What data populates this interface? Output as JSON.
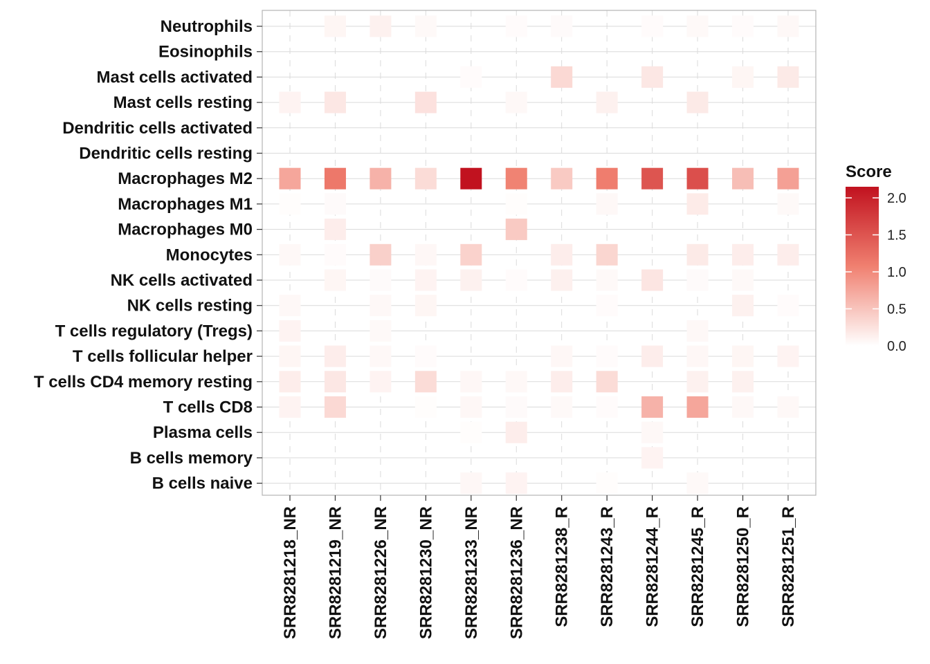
{
  "chart_data": {
    "type": "heatmap",
    "xlabel": "",
    "ylabel": "",
    "x": [
      "SRR8281218_NR",
      "SRR8281219_NR",
      "SRR8281226_NR",
      "SRR8281230_NR",
      "SRR8281233_NR",
      "SRR8281236_NR",
      "SRR8281238_R",
      "SRR8281243_R",
      "SRR8281244_R",
      "SRR8281245_R",
      "SRR8281250_R",
      "SRR8281251_R"
    ],
    "y": [
      "Neutrophils",
      "Eosinophils",
      "Mast cells activated",
      "Mast cells resting",
      "Dendritic cells activated",
      "Dendritic cells resting",
      "Macrophages M2",
      "Macrophages M1",
      "Macrophages M0",
      "Monocytes",
      "NK cells activated",
      "NK cells resting",
      "T cells regulatory (Tregs)",
      "T cells follicular helper",
      "T cells CD4 memory resting",
      "T cells CD8",
      "Plasma cells",
      "B cells memory",
      "B cells naive"
    ],
    "values": [
      [
        0.0,
        0.08,
        0.12,
        0.05,
        0.0,
        0.03,
        0.04,
        0.0,
        0.03,
        0.05,
        0.03,
        0.06
      ],
      [
        0.0,
        0.0,
        0.0,
        0.0,
        0.0,
        0.0,
        0.0,
        0.0,
        0.0,
        0.0,
        0.0,
        0.0
      ],
      [
        0.0,
        0.0,
        0.0,
        0.0,
        0.03,
        0.0,
        0.32,
        0.0,
        0.2,
        0.0,
        0.08,
        0.18
      ],
      [
        0.1,
        0.2,
        0.0,
        0.25,
        0.0,
        0.06,
        0.0,
        0.12,
        0.0,
        0.18,
        0.0,
        0.0
      ],
      [
        0.0,
        0.0,
        0.0,
        0.0,
        0.0,
        0.0,
        0.0,
        0.0,
        0.0,
        0.0,
        0.0,
        0.0
      ],
      [
        0.0,
        0.0,
        0.0,
        0.0,
        0.0,
        0.0,
        0.0,
        0.0,
        0.0,
        0.0,
        0.0,
        0.0
      ],
      [
        0.75,
        1.15,
        0.65,
        0.3,
        2.15,
        1.05,
        0.45,
        1.1,
        1.5,
        1.55,
        0.55,
        0.8
      ],
      [
        0.02,
        0.04,
        0.0,
        0.0,
        0.0,
        0.02,
        0.0,
        0.06,
        0.0,
        0.17,
        0.0,
        0.05
      ],
      [
        0.0,
        0.15,
        0.0,
        0.0,
        0.0,
        0.45,
        0.0,
        0.0,
        0.0,
        0.0,
        0.0,
        0.0
      ],
      [
        0.06,
        0.03,
        0.4,
        0.07,
        0.38,
        0.0,
        0.15,
        0.35,
        0.0,
        0.18,
        0.15,
        0.15
      ],
      [
        0.0,
        0.08,
        0.04,
        0.1,
        0.12,
        0.03,
        0.13,
        0.05,
        0.22,
        0.04,
        0.05,
        0.0
      ],
      [
        0.06,
        0.0,
        0.06,
        0.08,
        0.0,
        0.0,
        0.0,
        0.03,
        0.0,
        0.0,
        0.12,
        0.03
      ],
      [
        0.1,
        0.0,
        0.05,
        0.0,
        0.0,
        0.0,
        0.0,
        0.0,
        0.0,
        0.06,
        0.0,
        0.0
      ],
      [
        0.08,
        0.15,
        0.06,
        0.03,
        0.0,
        0.0,
        0.07,
        0.03,
        0.15,
        0.07,
        0.08,
        0.1
      ],
      [
        0.15,
        0.2,
        0.1,
        0.3,
        0.07,
        0.06,
        0.15,
        0.3,
        0.0,
        0.12,
        0.12,
        0.0
      ],
      [
        0.1,
        0.32,
        0.0,
        0.02,
        0.07,
        0.04,
        0.05,
        0.03,
        0.65,
        0.75,
        0.06,
        0.06
      ],
      [
        0.0,
        0.0,
        0.0,
        0.0,
        0.02,
        0.15,
        0.0,
        0.0,
        0.06,
        0.0,
        0.0,
        0.0
      ],
      [
        0.0,
        0.0,
        0.0,
        0.0,
        0.0,
        0.0,
        0.0,
        0.0,
        0.1,
        0.0,
        0.0,
        0.0
      ],
      [
        0.0,
        0.0,
        0.0,
        0.0,
        0.07,
        0.1,
        0.0,
        0.02,
        0.0,
        0.05,
        0.0,
        0.0
      ]
    ],
    "colorscale": {
      "low": "#ffffff",
      "mid": "#f08070",
      "high": "#c1121f",
      "min": 0.0,
      "max": 2.15
    },
    "legend": {
      "title": "Score",
      "ticks": [
        "0.0",
        "0.5",
        "1.0",
        "1.5",
        "2.0"
      ],
      "tick_values": [
        0.0,
        0.5,
        1.0,
        1.5,
        2.0
      ],
      "placement": "right"
    },
    "grid": true
  }
}
